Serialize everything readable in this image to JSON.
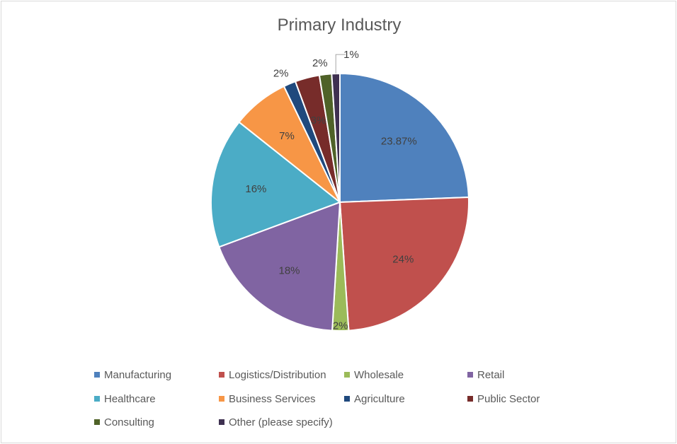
{
  "chart_data": {
    "type": "pie",
    "title": "Primary Industry",
    "legend_position": "bottom",
    "grid": false,
    "slices": [
      {
        "name": "Manufacturing",
        "value": 23.87,
        "label": "23.87%",
        "color": "#4f81bd"
      },
      {
        "name": "Logistics/Distribution",
        "value": 24,
        "label": "24%",
        "color": "#c0504d"
      },
      {
        "name": "Wholesale",
        "value": 2,
        "label": "2%",
        "color": "#9bbb59"
      },
      {
        "name": "Retail",
        "value": 18,
        "label": "18%",
        "color": "#8064a2"
      },
      {
        "name": "Healthcare",
        "value": 16,
        "label": "16%",
        "color": "#4bacc6"
      },
      {
        "name": "Business Services",
        "value": 7,
        "label": "7%",
        "color": "#f79646"
      },
      {
        "name": "Agriculture",
        "value": 1.5,
        "label": "2%",
        "color": "#1f497d"
      },
      {
        "name": "Public Sector",
        "value": 3,
        "label": "3%",
        "color": "#772c2a"
      },
      {
        "name": "Consulting",
        "value": 1.5,
        "label": "2%",
        "color": "#4f6228"
      },
      {
        "name": "Other (please specify)",
        "value": 1,
        "label": "1%",
        "color": "#3f3151"
      }
    ]
  }
}
